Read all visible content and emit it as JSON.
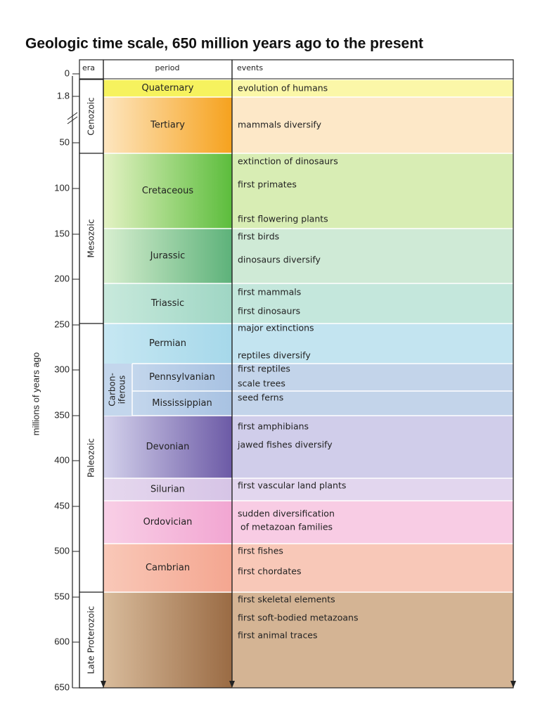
{
  "title": "Geologic time scale, 650 million years ago to the present",
  "axis_label": "millions of years ago",
  "headers": {
    "era": "era",
    "period": "period",
    "events": "events"
  },
  "ticks": [
    "0",
    "1.8",
    "50",
    "100",
    "150",
    "200",
    "250",
    "300",
    "350",
    "400",
    "450",
    "500",
    "550",
    "600",
    "650"
  ],
  "eras": [
    "Cenozoic",
    "Mesozoic",
    "Paleozoic",
    "Late Proterozoic"
  ],
  "carboniferous": [
    "Carbon-",
    "iferous"
  ],
  "periods": [
    {
      "name": "Quaternary",
      "events": [
        "evolution of humans"
      ]
    },
    {
      "name": "Tertiary",
      "events": [
        "mammals diversify"
      ]
    },
    {
      "name": "Cretaceous",
      "events": [
        "extinction of dinosaurs",
        "first primates",
        "first flowering plants"
      ]
    },
    {
      "name": "Jurassic",
      "events": [
        "first birds",
        "dinosaurs diversify"
      ]
    },
    {
      "name": "Triassic",
      "events": [
        "first mammals",
        "first dinosaurs"
      ]
    },
    {
      "name": "Permian",
      "events": [
        "major extinctions",
        "reptiles diversify"
      ]
    },
    {
      "name": "Pennsylvanian",
      "events": [
        "first reptiles",
        "scale trees"
      ]
    },
    {
      "name": "Mississippian",
      "events": [
        "seed ferns"
      ]
    },
    {
      "name": "Devonian",
      "events": [
        "first amphibians",
        "jawed fishes diversify"
      ]
    },
    {
      "name": "Silurian",
      "events": [
        "first vascular land plants"
      ]
    },
    {
      "name": "Ordovician",
      "events": [
        "sudden diversification",
        " of metazoan families"
      ]
    },
    {
      "name": "Cambrian",
      "events": [
        "first fishes",
        "first chordates"
      ]
    },
    {
      "events": [
        "first skeletal elements",
        "first soft-bodied metazoans",
        "first animal traces"
      ]
    }
  ]
}
